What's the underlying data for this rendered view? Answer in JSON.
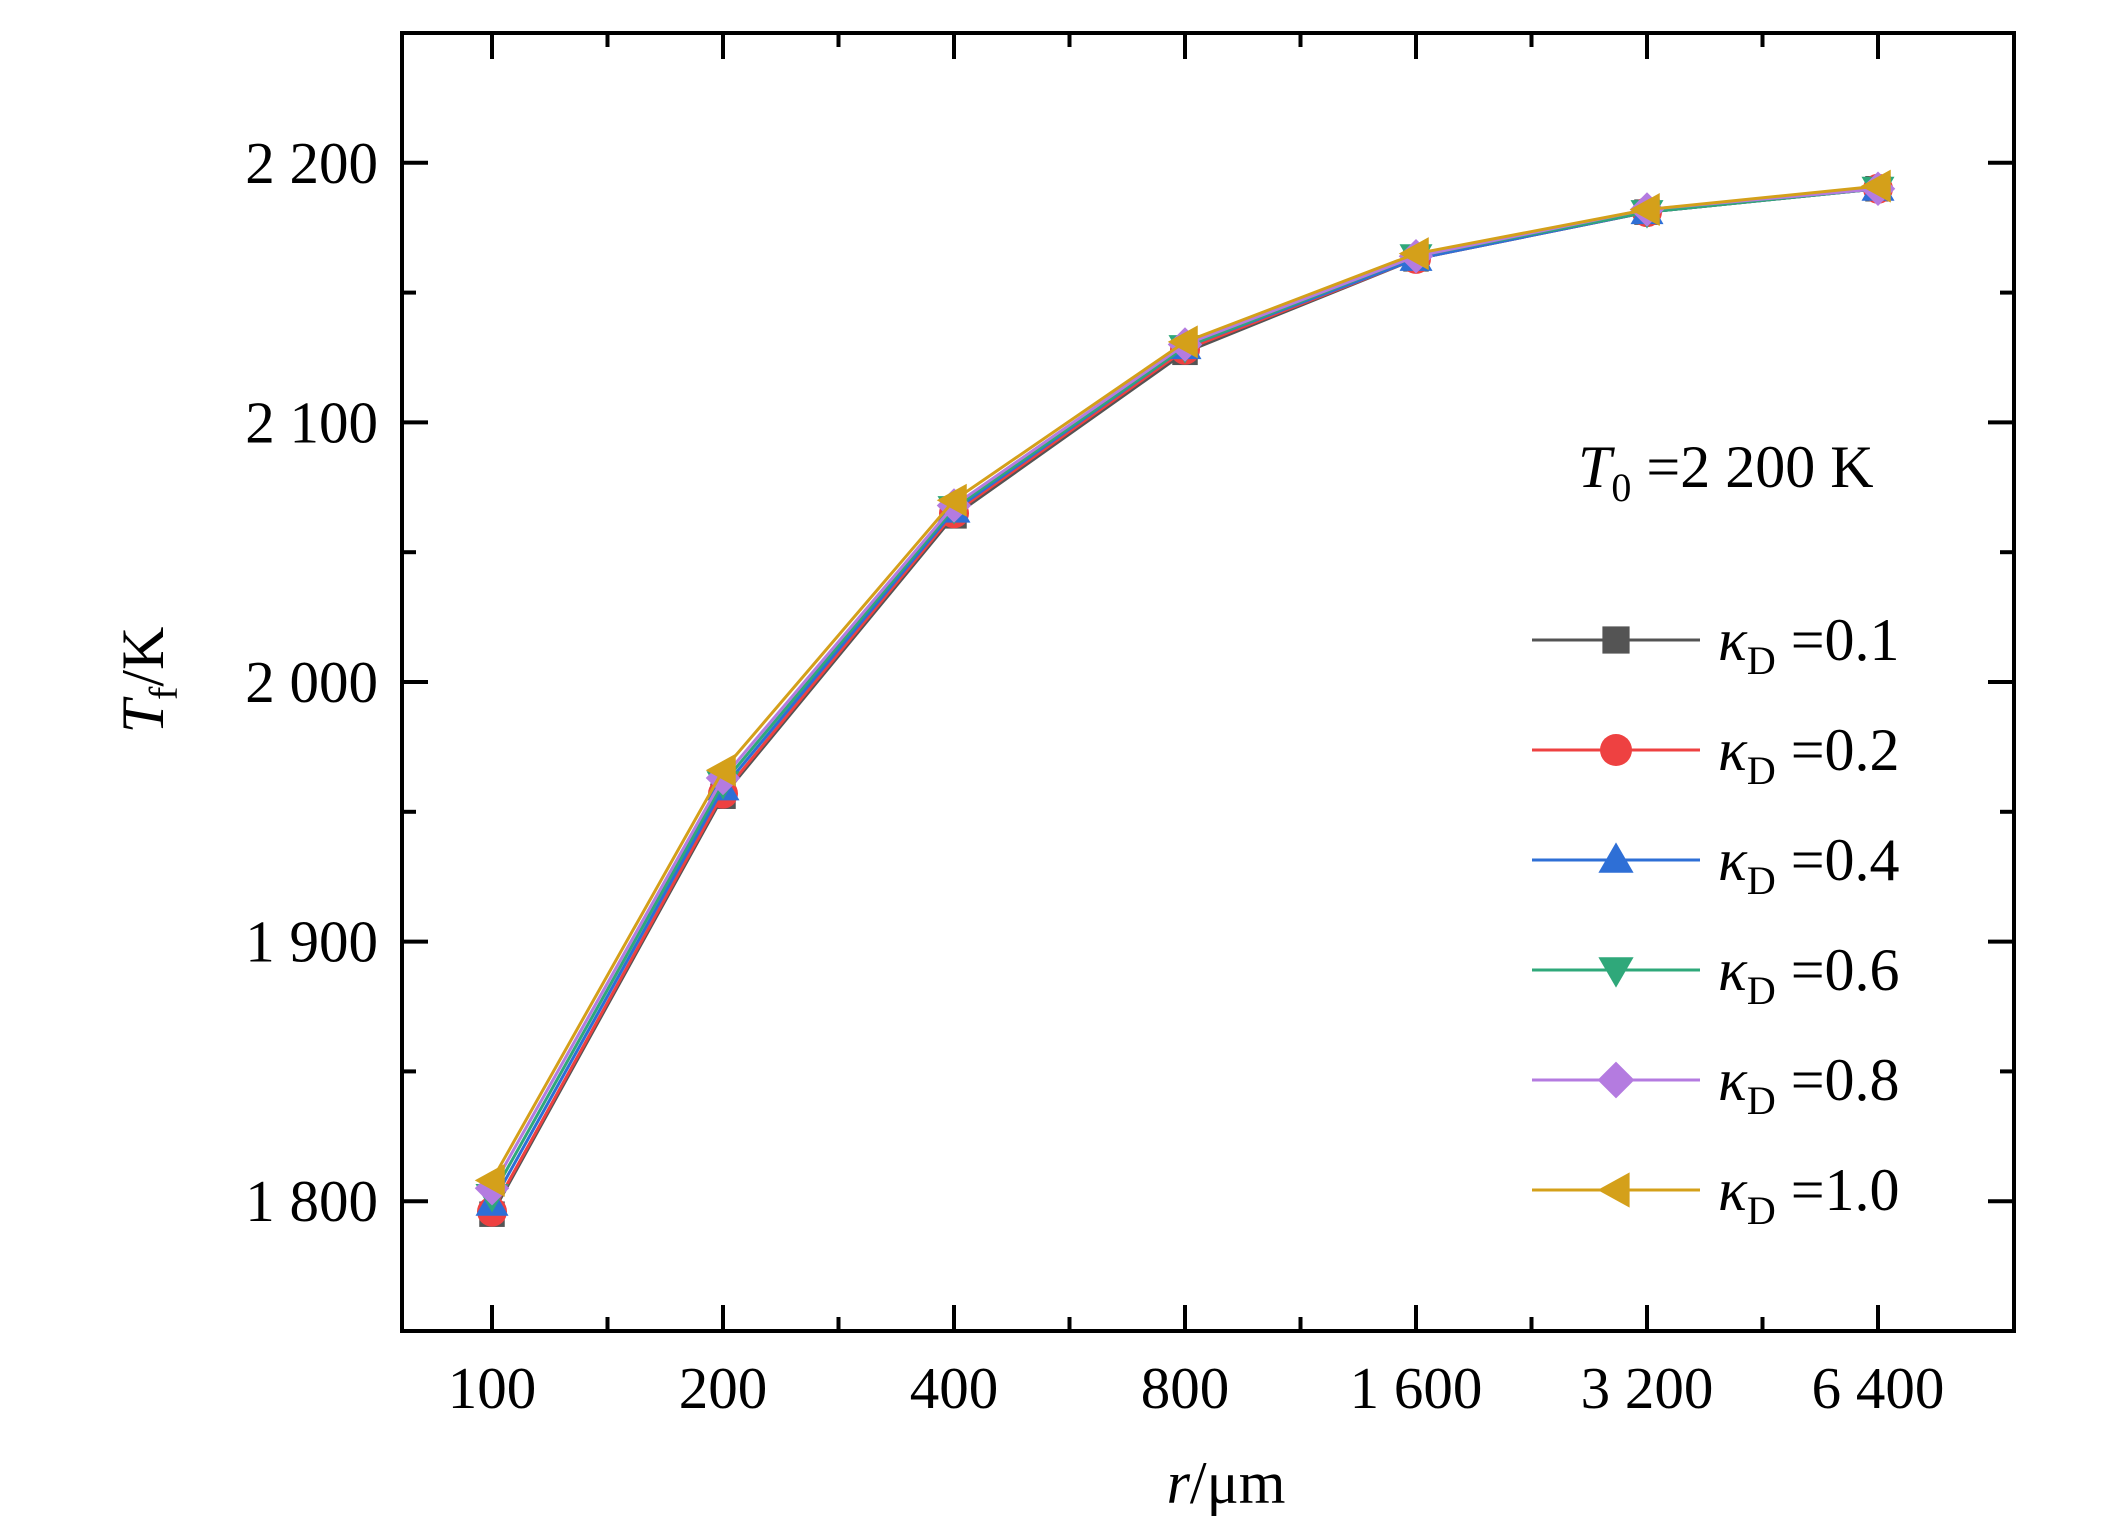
{
  "chart_data": {
    "type": "line",
    "title": "",
    "x_scale": "log2",
    "x": [
      100,
      200,
      400,
      800,
      1600,
      3200,
      6400
    ],
    "x_tick_labels": [
      "100",
      "200",
      "400",
      "800",
      "1 600",
      "3 200",
      "6 400"
    ],
    "xlabel": {
      "symbol": "r",
      "unit": "/μm"
    },
    "ylabel": {
      "symbol": "T",
      "sub": "f",
      "unit": "/K"
    },
    "ylim": [
      1750,
      2250
    ],
    "y_ticks": [
      1800,
      1900,
      2000,
      2100,
      2200
    ],
    "y_tick_labels": [
      "1 800",
      "1  900",
      "2 000",
      "2 100",
      "2 200"
    ],
    "annotation": {
      "symbol": "T",
      "sub": "0",
      "text": " =2 200 K"
    },
    "legend_position": "right",
    "series": [
      {
        "name": "κD =0.1",
        "label": {
          "symbol": "κ",
          "sub": "D",
          "value": " =0.1"
        },
        "marker": "square",
        "color": "#545454",
        "values": [
          1795,
          1956,
          2064,
          2127,
          2163,
          2181,
          2190
        ]
      },
      {
        "name": "κD =0.2",
        "label": {
          "symbol": "κ",
          "sub": "D",
          "value": " =0.2"
        },
        "marker": "circle",
        "color": "#ee4141",
        "values": [
          1796,
          1957,
          2065,
          2128,
          2163,
          2181,
          2190
        ]
      },
      {
        "name": "κD =0.4",
        "label": {
          "symbol": "κ",
          "sub": "D",
          "value": " =0.4"
        },
        "marker": "triangle-up",
        "color": "#2e6fd6",
        "values": [
          1799,
          1959,
          2066,
          2129,
          2163,
          2181,
          2190
        ]
      },
      {
        "name": "κD =0.6",
        "label": {
          "symbol": "κ",
          "sub": "D",
          "value": " =0.6"
        },
        "marker": "triangle-down",
        "color": "#2fa87a",
        "values": [
          1802,
          1961,
          2067,
          2129,
          2164,
          2181,
          2190
        ]
      },
      {
        "name": "κD =0.8",
        "label": {
          "symbol": "κ",
          "sub": "D",
          "value": " =0.8"
        },
        "marker": "diamond",
        "color": "#b47be0",
        "values": [
          1805,
          1963,
          2068,
          2130,
          2164,
          2182,
          2190
        ]
      },
      {
        "name": "κD =1.0",
        "label": {
          "symbol": "κ",
          "sub": "D",
          "value": " =1.0"
        },
        "marker": "triangle-left",
        "color": "#d4a01a",
        "values": [
          1808,
          1966,
          2070,
          2131,
          2165,
          2182,
          2191
        ]
      }
    ]
  }
}
